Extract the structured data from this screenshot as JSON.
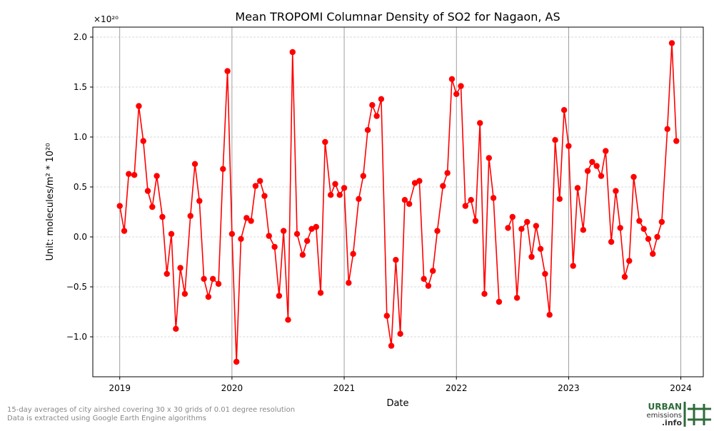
{
  "chart_data": {
    "type": "line",
    "title": "Mean TROPOMI Columnar Density of SO2 for Nagaon, AS",
    "x_label": "Date",
    "y_label": "Unit: molecules/m² * 10²⁰",
    "y_offset_label": "×10²⁰",
    "xlim": [
      2018.76,
      2024.2
    ],
    "xticks": [
      2019,
      2020,
      2021,
      2022,
      2023,
      2024
    ],
    "ylim": [
      -1.4,
      2.1
    ],
    "yticks": [
      {
        "value": -1,
        "label": "−1.0"
      },
      {
        "value": -0.5,
        "label": "−0.5"
      },
      {
        "value": 0,
        "label": "0.0"
      },
      0.5,
      {
        "value": 1,
        "label": "1.0"
      },
      1.5,
      {
        "value": 2,
        "label": "2.0"
      }
    ],
    "grid": true,
    "x": [
      2019.0,
      2019.04,
      2019.08,
      2019.13,
      2019.17,
      2019.21,
      2019.25,
      2019.29,
      2019.33,
      2019.38,
      2019.42,
      2019.46,
      2019.5,
      2019.54,
      2019.58,
      2019.63,
      2019.67,
      2019.71,
      2019.75,
      2019.79,
      2019.83,
      2019.88,
      2019.92,
      2019.96,
      2020.0,
      2020.04,
      2020.08,
      2020.13,
      2020.17,
      2020.21,
      2020.25,
      2020.29,
      2020.33,
      2020.38,
      2020.42,
      2020.46,
      2020.5,
      2020.54,
      2020.58,
      2020.63,
      2020.67,
      2020.71,
      2020.75,
      2020.79,
      2020.83,
      2020.88,
      2020.92,
      2020.96,
      2021.0,
      2021.04,
      2021.08,
      2021.13,
      2021.17,
      2021.21,
      2021.25,
      2021.29,
      2021.33,
      2021.38,
      2021.42,
      2021.46,
      2021.5,
      2021.54,
      2021.58,
      2021.63,
      2021.67,
      2021.71,
      2021.75,
      2021.79,
      2021.83,
      2021.88,
      2021.92,
      2021.96,
      2022.0,
      2022.04,
      2022.08,
      2022.13,
      2022.17,
      2022.21,
      2022.25,
      2022.29,
      2022.33,
      2022.38,
      2022.42,
      2022.46,
      2022.5,
      2022.54,
      2022.58,
      2022.63,
      2022.67,
      2022.71,
      2022.75,
      2022.79,
      2022.83,
      2022.88,
      2022.92,
      2022.96,
      2023.0,
      2023.04,
      2023.08,
      2023.13,
      2023.17,
      2023.21,
      2023.25,
      2023.29,
      2023.33,
      2023.38,
      2023.42,
      2023.46,
      2023.5,
      2023.54,
      2023.58,
      2023.63,
      2023.67,
      2023.71,
      2023.75,
      2023.79,
      2023.83,
      2023.88,
      2023.92,
      2023.96
    ],
    "series": [
      {
        "name": "SO2",
        "color": "#ff0000",
        "values": [
          0.31,
          0.06,
          0.63,
          0.62,
          1.31,
          0.96,
          0.46,
          0.3,
          0.61,
          0.2,
          -0.37,
          0.03,
          -0.92,
          -0.31,
          -0.57,
          0.21,
          0.73,
          0.36,
          -0.42,
          -0.6,
          -0.42,
          -0.47,
          0.68,
          1.66,
          0.03,
          -1.25,
          -0.02,
          0.19,
          0.16,
          0.51,
          0.56,
          0.41,
          0.01,
          -0.1,
          -0.59,
          0.06,
          -0.83,
          1.85,
          0.03,
          -0.18,
          -0.04,
          0.08,
          0.1,
          -0.56,
          0.95,
          0.42,
          0.53,
          0.42,
          0.49,
          -0.46,
          -0.17,
          0.38,
          0.61,
          1.07,
          1.32,
          1.21,
          1.38,
          -0.79,
          -1.09,
          -0.23,
          -0.97,
          0.37,
          0.33,
          0.54,
          0.56,
          -0.42,
          -0.49,
          -0.34,
          0.06,
          0.51,
          0.64,
          1.58,
          1.43,
          1.51,
          0.31,
          0.37,
          0.16,
          1.14,
          -0.57,
          0.79,
          0.39,
          -0.65,
          null,
          0.09,
          0.2,
          -0.61,
          0.08,
          0.15,
          -0.2,
          0.11,
          -0.12,
          -0.37,
          -0.78,
          0.97,
          0.38,
          1.27,
          0.91,
          -0.29,
          0.49,
          0.07,
          0.66,
          0.75,
          0.71,
          0.61,
          0.86,
          -0.05,
          0.46,
          0.09,
          -0.4,
          -0.24,
          0.6,
          0.16,
          0.08,
          -0.02,
          -0.17,
          0.0,
          0.15,
          1.08,
          1.94,
          0.96
        ]
      }
    ]
  },
  "footer": {
    "line1": "15-day averages of city airshed covering 30 x 30 grids of 0.01 degree resolution",
    "line2": "Data is extracted using Google Earth Engine algorithms"
  },
  "logo": {
    "line1": "URBAN",
    "line2": "emissions",
    "line3": ".info"
  }
}
